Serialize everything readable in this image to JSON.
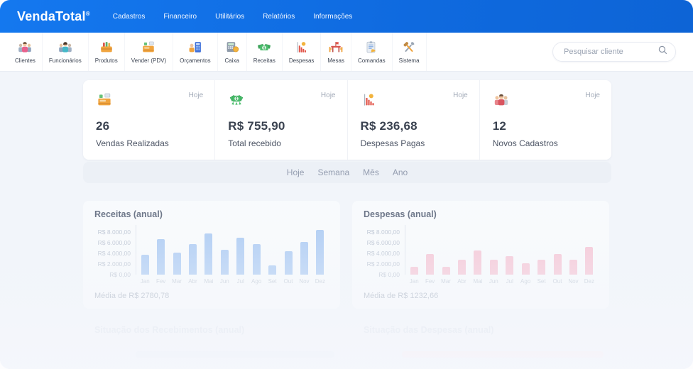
{
  "nav": {
    "logo": "VendaTotal",
    "logo_suffix": "®",
    "items": [
      "Cadastros",
      "Financeiro",
      "Utilitários",
      "Relatórios",
      "Informações"
    ]
  },
  "toolbar": {
    "items": [
      {
        "label": "Clientes",
        "icon": "clients-icon"
      },
      {
        "label": "Funcionários",
        "icon": "employees-icon"
      },
      {
        "label": "Produtos",
        "icon": "products-icon"
      },
      {
        "label": "Vender (PDV)",
        "icon": "pos-icon"
      },
      {
        "label": "Orçamentos",
        "icon": "budgets-icon"
      },
      {
        "label": "Caixa",
        "icon": "cash-register-icon"
      },
      {
        "label": "Receitas",
        "icon": "revenues-icon"
      },
      {
        "label": "Despesas",
        "icon": "expenses-icon"
      },
      {
        "label": "Mesas",
        "icon": "tables-icon"
      },
      {
        "label": "Comandas",
        "icon": "orders-icon"
      },
      {
        "label": "Sistema",
        "icon": "system-icon"
      }
    ],
    "search": {
      "placeholder": "Pesquisar cliente",
      "icon": "search-icon"
    }
  },
  "stats": {
    "cards": [
      {
        "icon": "sales-register-icon",
        "period": "Hoje",
        "value": "26",
        "label": "Vendas Realizadas"
      },
      {
        "icon": "money-received-icon",
        "period": "Hoje",
        "value": "R$ 755,90",
        "label": "Total recebido"
      },
      {
        "icon": "expenses-chart-icon",
        "period": "Hoje",
        "value": "R$ 236,68",
        "label": "Despesas Pagas"
      },
      {
        "icon": "new-registrations-icon",
        "period": "Hoje",
        "value": "12",
        "label": "Novos Cadastros"
      }
    ]
  },
  "period_tabs": [
    "Hoje",
    "Semana",
    "Mês",
    "Ano"
  ],
  "chart_data": [
    {
      "type": "bar",
      "title": "Receitas (anual)",
      "categories": [
        "Jan",
        "Fev",
        "Mar",
        "Abr",
        "Mai",
        "Jun",
        "Jul",
        "Ago",
        "Set",
        "Out",
        "Nov",
        "Dez"
      ],
      "values": [
        3700,
        6650,
        4150,
        5800,
        7750,
        4700,
        7000,
        5800,
        1700,
        4450,
        6150,
        8350
      ],
      "ytick_labels": [
        "R$ 8.000,00",
        "R$ 6.000,00",
        "R$ 4.000,00",
        "R$ 2.000,00",
        "R$ 0,00"
      ],
      "ylim": [
        0,
        8000
      ],
      "grid": false,
      "legend": false,
      "bar_color": "#a9c9f3",
      "footer": "Média de R$ 2780,78"
    },
    {
      "type": "bar",
      "title": "Despesas (anual)",
      "categories": [
        "Jan",
        "Fev",
        "Mar",
        "Abr",
        "Mai",
        "Jun",
        "Jul",
        "Ago",
        "Set",
        "Out",
        "Nov",
        "Dez"
      ],
      "values": [
        1450,
        3900,
        1450,
        2850,
        4550,
        2850,
        3500,
        2150,
        2850,
        3900,
        2850,
        5200
      ],
      "ytick_labels": [
        "R$ 8.000,00",
        "R$ 6.000,00",
        "R$ 4.000,00",
        "R$ 2.000,00",
        "R$ 0,00"
      ],
      "ylim": [
        0,
        8000
      ],
      "grid": false,
      "legend": false,
      "bar_color": "#f6c3d3",
      "footer": "Média de R$ 1232,66"
    }
  ],
  "bottom_sections": [
    {
      "title": "Situação dos Recebimentos (anual)",
      "bar_color": "#e5ecf8"
    },
    {
      "title": "Situação das Despesas (anual)",
      "bar_color": "#f9eaef"
    }
  ],
  "colors": {
    "navbar_blue": "#0f6adf",
    "page_background": "#f2f5fa",
    "revenue_bar": "#a9c9f3",
    "expense_bar": "#f6c3d3"
  }
}
